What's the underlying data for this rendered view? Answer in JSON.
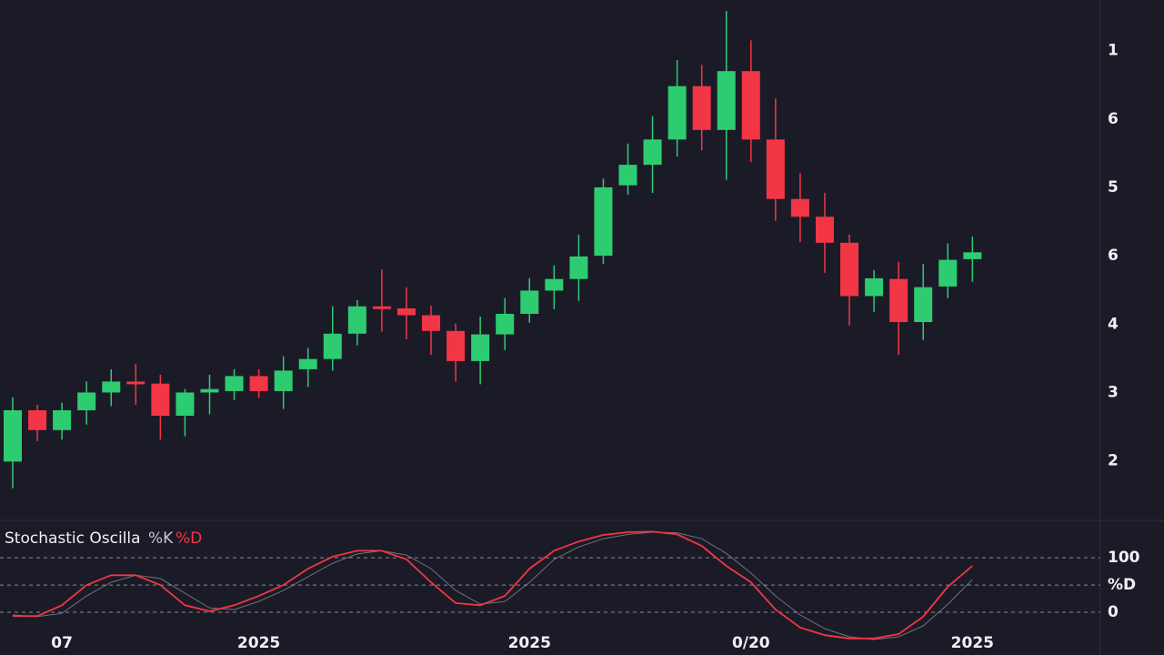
{
  "chart_data": [
    {
      "type": "candlestick",
      "categories": [
        null,
        null,
        "07",
        null,
        null,
        null,
        null,
        null,
        null,
        null,
        "2025",
        null,
        null,
        null,
        null,
        null,
        null,
        null,
        null,
        null,
        null,
        "2025",
        null,
        null,
        null,
        null,
        null,
        null,
        null,
        null,
        "0/20",
        null,
        null,
        null,
        null,
        null,
        null,
        null,
        null,
        "2025"
      ],
      "open": [
        1.99,
        2.74,
        2.45,
        2.74,
        3.0,
        3.16,
        3.13,
        2.66,
        3.0,
        3.02,
        3.24,
        3.02,
        3.34,
        3.49,
        3.86,
        4.26,
        4.23,
        4.13,
        3.9,
        3.46,
        3.85,
        4.15,
        4.49,
        4.66,
        5.0,
        6.03,
        6.33,
        6.7,
        7.48,
        6.84,
        7.7,
        6.7,
        5.83,
        5.57,
        5.19,
        4.41,
        4.66,
        4.03,
        4.55,
        4.95
      ],
      "high": [
        2.93,
        2.82,
        2.85,
        3.16,
        3.34,
        3.42,
        3.26,
        3.05,
        3.26,
        3.34,
        3.34,
        3.53,
        3.65,
        4.26,
        4.35,
        4.8,
        4.54,
        4.27,
        4.01,
        4.11,
        4.38,
        4.67,
        4.86,
        5.31,
        6.13,
        6.64,
        7.04,
        7.86,
        7.79,
        8.58,
        8.15,
        7.3,
        6.21,
        5.92,
        5.31,
        4.79,
        4.91,
        4.88,
        5.18,
        5.28
      ],
      "low": [
        1.6,
        2.29,
        2.31,
        2.53,
        2.8,
        2.82,
        2.31,
        2.36,
        2.68,
        2.89,
        2.92,
        2.76,
        3.08,
        3.32,
        3.69,
        3.89,
        3.78,
        3.55,
        3.16,
        3.12,
        3.62,
        4.02,
        4.22,
        4.34,
        4.88,
        5.89,
        5.92,
        6.45,
        6.54,
        6.11,
        6.37,
        5.51,
        5.2,
        4.75,
        3.98,
        4.18,
        3.55,
        3.77,
        4.38,
        4.62
      ],
      "close": [
        2.74,
        2.45,
        2.74,
        3.0,
        3.16,
        3.12,
        2.66,
        3.0,
        3.05,
        3.24,
        3.02,
        3.32,
        3.49,
        3.86,
        4.26,
        4.22,
        4.13,
        3.9,
        3.46,
        3.85,
        4.15,
        4.49,
        4.66,
        4.99,
        6.0,
        6.33,
        6.7,
        7.48,
        6.84,
        7.7,
        6.7,
        5.83,
        5.57,
        5.19,
        4.41,
        4.67,
        4.03,
        4.54,
        4.94,
        5.05
      ],
      "up_color": "#2ecc71",
      "down_color": "#f23645",
      "ylim": [
        1.13,
        8.74
      ],
      "yticks": [
        {
          "value": 8,
          "label": "1"
        },
        {
          "value": 7,
          "label": "6"
        },
        {
          "value": 6,
          "label": "5"
        },
        {
          "value": 5,
          "label": "6"
        },
        4,
        3,
        2
      ]
    },
    {
      "type": "line",
      "title": "Stochastic Oscilla",
      "series": [
        {
          "name": "%K",
          "color": "#c8c8d0",
          "values": [
            -5,
            -8,
            -2,
            30,
            55,
            68,
            62,
            35,
            8,
            5,
            20,
            40,
            65,
            90,
            107,
            113,
            105,
            80,
            40,
            15,
            20,
            55,
            97,
            120,
            135,
            143,
            147,
            146,
            135,
            108,
            72,
            30,
            -5,
            -30,
            -45,
            -50,
            -45,
            -25,
            15,
            60
          ]
        },
        {
          "name": "%D",
          "color": "#f23645",
          "values": [
            -7,
            -7,
            13,
            50,
            68,
            68,
            50,
            13,
            2,
            13,
            30,
            50,
            80,
            102,
            113,
            113,
            97,
            55,
            17,
            13,
            30,
            80,
            113,
            130,
            142,
            147,
            148,
            143,
            122,
            85,
            55,
            5,
            -28,
            -42,
            -48,
            -48,
            -40,
            -8,
            47,
            85
          ]
        }
      ],
      "ylim": [
        -55,
        167
      ],
      "yticks": [
        100,
        {
          "value": 50,
          "label": "%D"
        },
        0
      ],
      "grid": true
    }
  ]
}
